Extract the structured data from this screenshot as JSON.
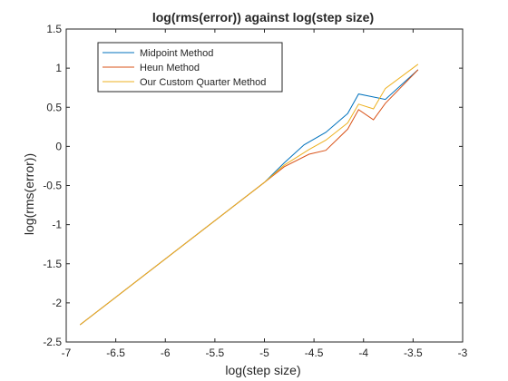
{
  "chart_data": {
    "type": "line",
    "title": "log(rms(error)) against log(step size)",
    "xlabel": "log(step size)",
    "ylabel": "log(rms(error))",
    "xlim": [
      -7,
      -3
    ],
    "ylim": [
      -2.5,
      1.5
    ],
    "xticks": [
      -7,
      -6.5,
      -6,
      -5.5,
      -5,
      -4.5,
      -4,
      -3.5,
      -3
    ],
    "xtick_labels": [
      "-7",
      "-6.5",
      "-6",
      "-5.5",
      "-5",
      "-4.5",
      "-4",
      "-3.5",
      "-3"
    ],
    "yticks": [
      -2.5,
      -2,
      -1.5,
      -1,
      -0.5,
      0,
      0.5,
      1,
      1.5
    ],
    "ytick_labels": [
      "-2.5",
      "-2",
      "-1.5",
      "-1",
      "-0.5",
      "0",
      "0.5",
      "1",
      "1.5"
    ],
    "grid": false,
    "legend_position": "top-left",
    "series": [
      {
        "name": "Midpoint Method",
        "color": "#0072bd",
        "x": [
          -6.86,
          -5.0,
          -4.8,
          -4.6,
          -4.38,
          -4.16,
          -4.05,
          -3.78,
          -3.45
        ],
        "y": [
          -2.28,
          -0.46,
          -0.21,
          0.02,
          0.18,
          0.42,
          0.67,
          0.6,
          0.98
        ]
      },
      {
        "name": "Heun Method",
        "color": "#d95319",
        "x": [
          -6.86,
          -5.0,
          -4.8,
          -4.55,
          -4.38,
          -4.16,
          -4.05,
          -3.9,
          -3.78,
          -3.45
        ],
        "y": [
          -2.28,
          -0.46,
          -0.26,
          -0.1,
          -0.05,
          0.22,
          0.47,
          0.34,
          0.55,
          0.98
        ]
      },
      {
        "name": "Our Custom Quarter Method",
        "color": "#edb120",
        "x": [
          -6.86,
          -5.0,
          -4.8,
          -4.55,
          -4.38,
          -4.16,
          -4.05,
          -3.9,
          -3.78,
          -3.45
        ],
        "y": [
          -2.28,
          -0.46,
          -0.24,
          -0.04,
          0.08,
          0.3,
          0.54,
          0.48,
          0.74,
          1.05
        ]
      }
    ]
  }
}
